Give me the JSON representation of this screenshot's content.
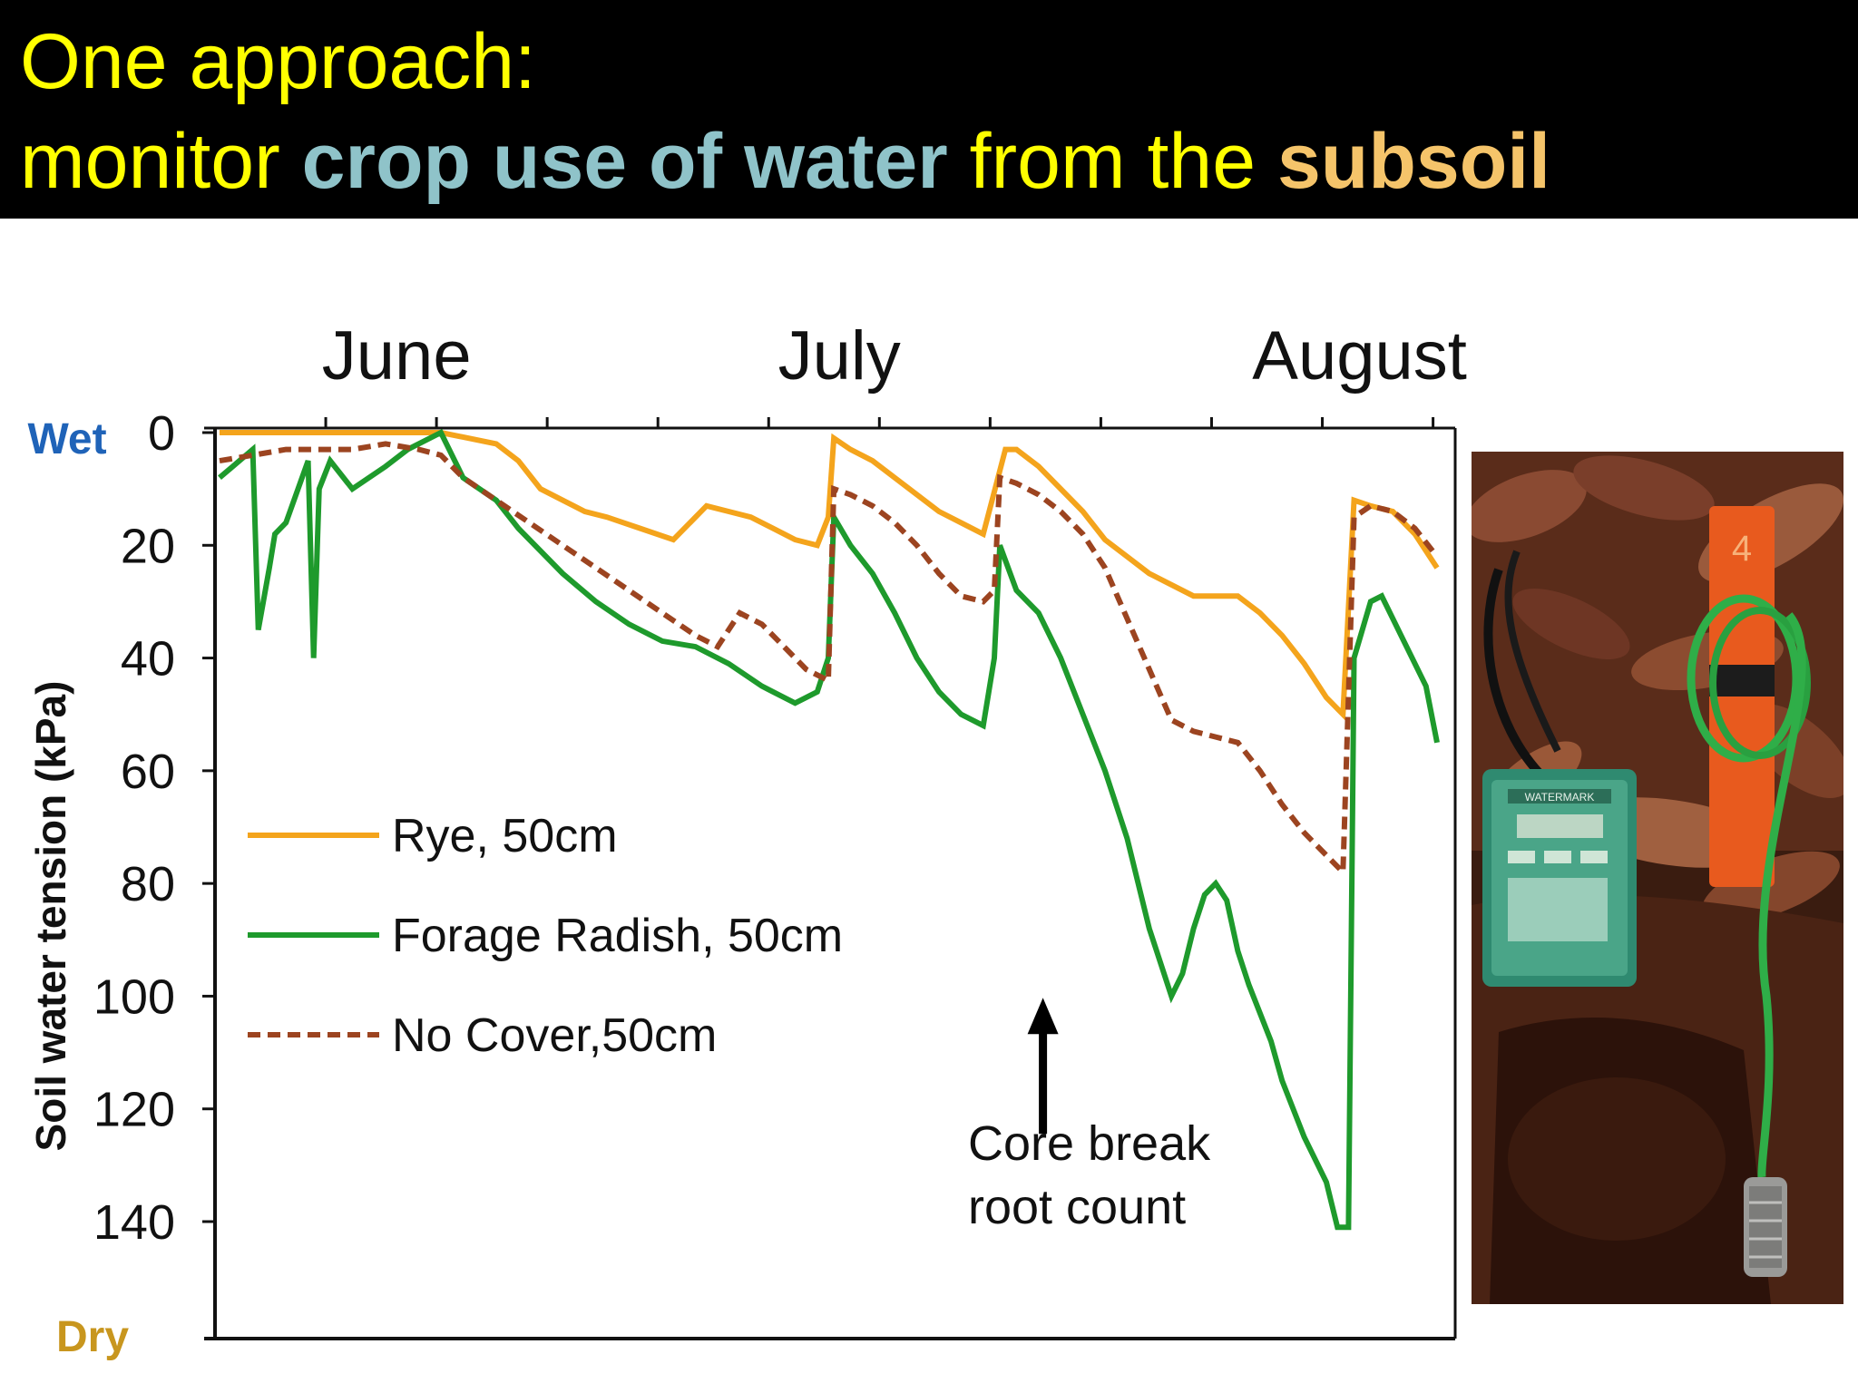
{
  "slide": {
    "title_line1": "One approach:",
    "title_line2_parts": [
      {
        "text": "monitor ",
        "color": "#ffff00",
        "bold": false
      },
      {
        "text": "crop use of water",
        "color": "#8fc3c9",
        "bold": true
      },
      {
        "text": " from the ",
        "color": "#ffff00",
        "bold": false
      },
      {
        "text": "subsoil",
        "color": "#f5c46a",
        "bold": true
      }
    ]
  },
  "chart_data": {
    "type": "line",
    "title": "",
    "xlabel": "",
    "ylabel": "Soil water tension (kPa)",
    "ylim": [
      0,
      160
    ],
    "y_inverted": true,
    "yticks": [
      0,
      20,
      40,
      60,
      80,
      100,
      120,
      140
    ],
    "month_labels": [
      {
        "label": "June",
        "day": 16
      },
      {
        "label": "July",
        "day": 56
      },
      {
        "label": "August",
        "day": 103
      }
    ],
    "xlim": [
      0,
      110
    ],
    "x_unit": "approximate day of season (June 1 = 0)",
    "y_end_labels": {
      "top": "Wet",
      "bottom": "Dry",
      "top_color": "#1f63b8",
      "bottom_color": "#c8961e"
    },
    "legend_position": "left-middle",
    "series": [
      {
        "name": "Rye, 50cm",
        "color": "#f4a41c",
        "style": "solid",
        "x": [
          0,
          6,
          12,
          20,
          25,
          27,
          29,
          31,
          33,
          35,
          38,
          41,
          44,
          46,
          48,
          50,
          52,
          54,
          55,
          55.5,
          57,
          59,
          61,
          63,
          65,
          67,
          69,
          71,
          72,
          74,
          76,
          78,
          80,
          82,
          84,
          86,
          88,
          90,
          92,
          94,
          96,
          98,
          100,
          101.5,
          102.5,
          104,
          106,
          108,
          110
        ],
        "values": [
          0,
          0,
          0,
          0,
          2,
          5,
          10,
          12,
          14,
          15,
          17,
          19,
          13,
          14,
          15,
          17,
          19,
          20,
          15,
          1,
          3,
          5,
          8,
          11,
          14,
          16,
          18,
          3,
          3,
          6,
          10,
          14,
          19,
          22,
          25,
          27,
          29,
          29,
          29,
          32,
          36,
          41,
          47,
          50,
          12,
          13,
          14,
          18,
          24
        ]
      },
      {
        "name": "Forage Radish, 50cm",
        "color": "#1e9a2c",
        "style": "solid",
        "x": [
          0,
          3,
          3.5,
          4.5,
          5,
          6,
          8,
          8.5,
          9,
          10,
          12,
          15,
          17,
          20,
          22,
          25,
          27,
          29,
          31,
          34,
          37,
          40,
          43,
          46,
          49,
          52,
          54,
          55,
          55.5,
          57,
          59,
          61,
          63,
          65,
          67,
          69,
          70,
          70.5,
          72,
          74,
          76,
          78,
          80,
          82,
          84,
          86,
          87,
          88,
          89,
          90,
          91,
          92,
          93,
          95,
          96,
          98,
          100,
          101,
          102,
          102.5,
          104,
          105,
          107,
          109,
          110
        ],
        "values": [
          8,
          3,
          35,
          24,
          18,
          16,
          5,
          40,
          10,
          5,
          10,
          6,
          3,
          0,
          8,
          12,
          17,
          21,
          25,
          30,
          34,
          37,
          38,
          41,
          45,
          48,
          46,
          40,
          15,
          20,
          25,
          32,
          40,
          46,
          50,
          52,
          40,
          20,
          28,
          32,
          40,
          50,
          60,
          72,
          88,
          100,
          96,
          88,
          82,
          80,
          83,
          92,
          98,
          108,
          115,
          125,
          133,
          141,
          141,
          40,
          30,
          29,
          37,
          45,
          55
        ]
      },
      {
        "name": "No Cover,50cm",
        "color": "#9c4420",
        "style": "dashed",
        "x": [
          0,
          3,
          6,
          9,
          12,
          15,
          18,
          20,
          22,
          25,
          28,
          31,
          34,
          37,
          40,
          43,
          45,
          47,
          49,
          51,
          53,
          55,
          55.5,
          57,
          59,
          61,
          63,
          65,
          67,
          69,
          70,
          70.5,
          72,
          74,
          76,
          78,
          80,
          82,
          84,
          86,
          88,
          90,
          92,
          94,
          96,
          98,
          100,
          101.5,
          102.5,
          104,
          106,
          108,
          110
        ],
        "values": [
          5,
          4,
          3,
          3,
          3,
          2,
          3,
          4,
          8,
          12,
          16,
          20,
          24,
          28,
          32,
          36,
          38,
          32,
          34,
          38,
          42,
          44,
          10,
          11,
          13,
          16,
          20,
          25,
          29,
          30,
          28,
          8,
          9,
          11,
          14,
          18,
          24,
          33,
          42,
          51,
          53,
          54,
          55,
          60,
          66,
          71,
          75,
          78,
          15,
          13,
          14,
          17,
          22
        ]
      }
    ],
    "annotations": [
      {
        "text_lines": [
          "Core break",
          "root count"
        ],
        "arrow_day": 78,
        "arrow_value": 99,
        "arrow_dir": "up"
      }
    ]
  },
  "photo": {
    "description_icon": "soil-sensor-photo",
    "meter_label": "WATERMARK",
    "stake_label": "4"
  }
}
